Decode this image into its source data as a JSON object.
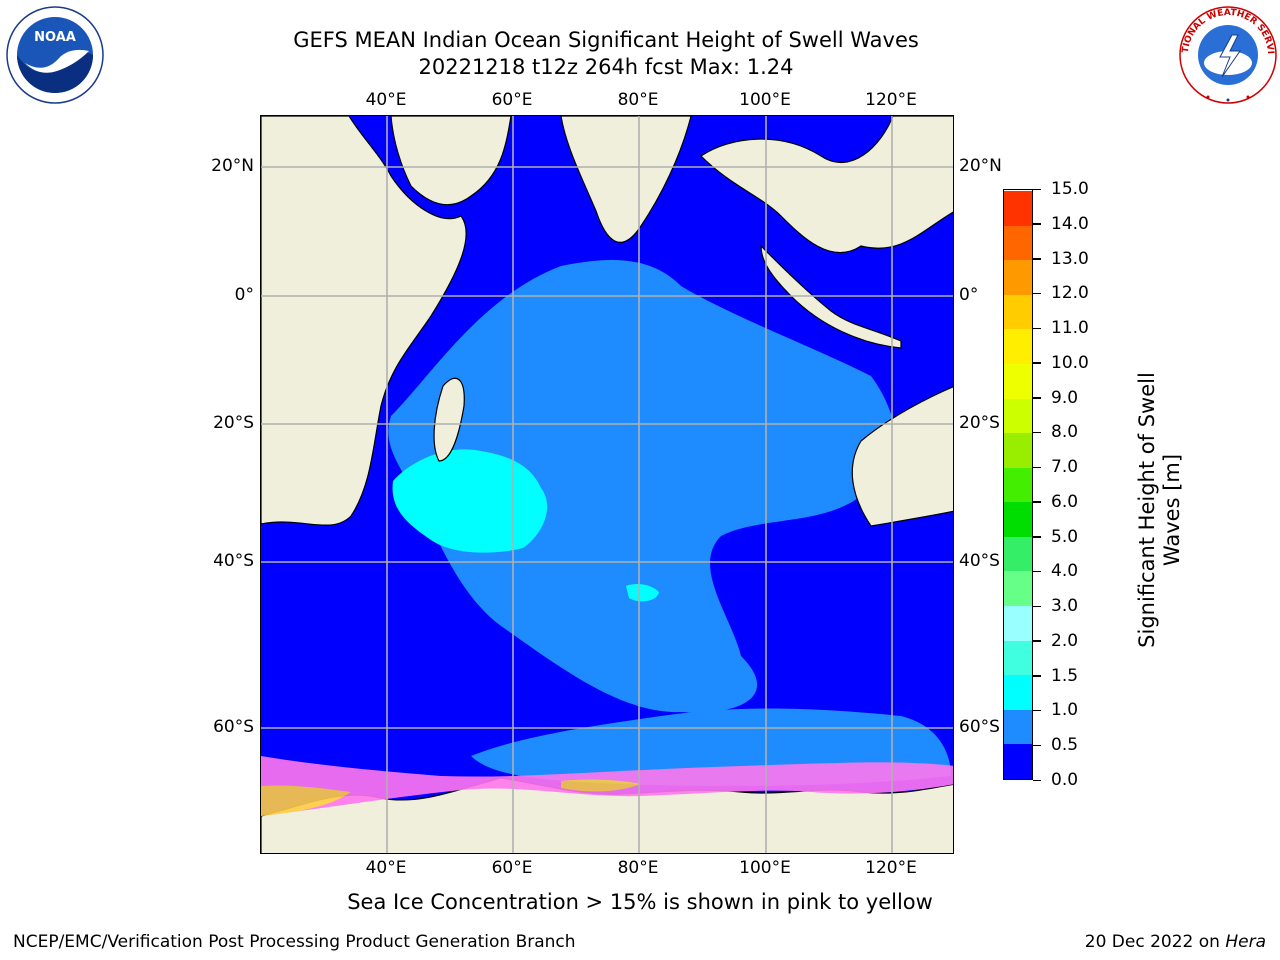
{
  "title": {
    "line1": "GEFS MEAN Indian Ocean Significant Height of Swell Waves",
    "line2": "20221218 t12z 264h fcst   Max: 1.24"
  },
  "axes": {
    "lon_ticks": [
      "40°E",
      "60°E",
      "80°E",
      "100°E",
      "120°E"
    ],
    "lat_ticks": [
      "20°N",
      "0°",
      "20°S",
      "40°S",
      "60°S"
    ]
  },
  "colorbar": {
    "label": "Significant Height of Swell Waves [m]",
    "label_line1": "Significant Height of Swell",
    "label_line2": "Waves [m]",
    "ticks": [
      "0.0",
      "0.5",
      "1.0",
      "1.5",
      "2.0",
      "3.0",
      "4.0",
      "5.0",
      "6.0",
      "7.0",
      "8.0",
      "9.0",
      "10.0",
      "11.0",
      "12.0",
      "13.0",
      "14.0",
      "15.0"
    ],
    "colors": [
      "#0000ff",
      "#1e8cff",
      "#00ffff",
      "#40ffe0",
      "#99ffff",
      "#66ff88",
      "#33ee66",
      "#00dd00",
      "#44ee00",
      "#99ee00",
      "#ccff00",
      "#eeff00",
      "#ffee00",
      "#ffcc00",
      "#ff9900",
      "#ff6600",
      "#ff3300",
      "#ff0000"
    ]
  },
  "map_colors": {
    "land": "#efefdc",
    "swell_0_0_5": "#0000ff",
    "swell_0_5_1_0": "#1e8cff",
    "swell_1_0_1_5": "#00ffff",
    "sea_ice": "#ff77ee",
    "sea_ice_high": "#ffcc44",
    "grid": "#b0b0b0"
  },
  "logos": {
    "left": "NOAA",
    "right": "NATIONAL WEATHER SERVICE"
  },
  "footnote": "Sea Ice Concentration > 15% is shown in pink to yellow",
  "credit_left": "NCEP/EMC/Verification Post Processing Product Generation Branch",
  "credit_right_date": "20 Dec 2022 on ",
  "credit_right_host": "Hera"
}
